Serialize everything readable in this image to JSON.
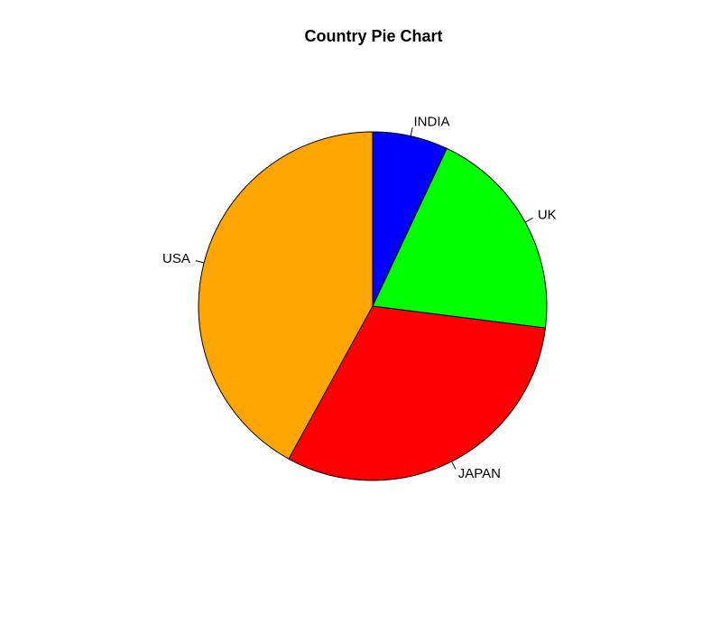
{
  "chart_data": {
    "type": "pie",
    "title": "Country Pie Chart",
    "categories": [
      "INDIA",
      "UK",
      "JAPAN",
      "USA"
    ],
    "values": [
      7,
      20,
      31,
      42
    ],
    "colors": [
      "#0000ff",
      "#00ff00",
      "#ff0000",
      "#ffa500"
    ],
    "start": "top",
    "direction": "clockwise",
    "legend": "none"
  }
}
